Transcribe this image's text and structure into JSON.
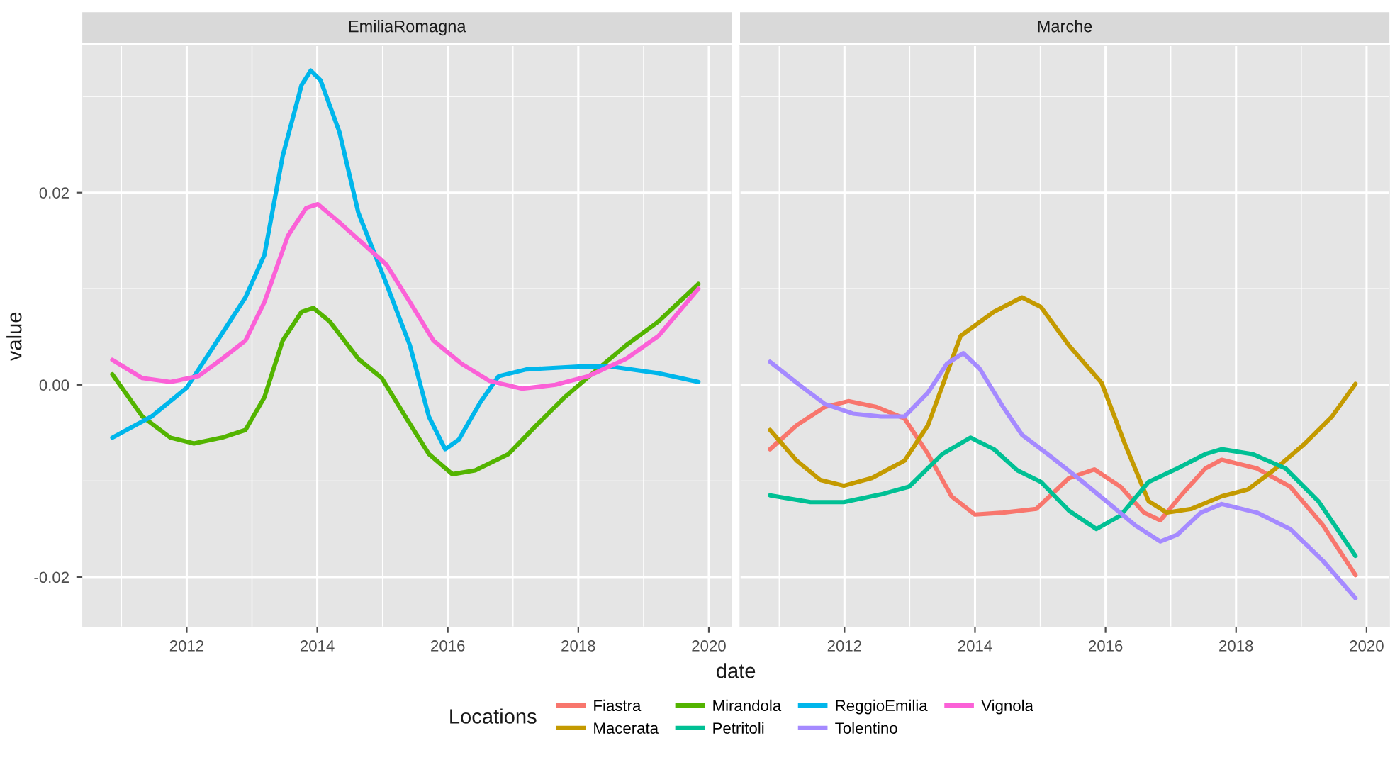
{
  "chart_data": [
    {
      "type": "line",
      "title": "EmiliaRomagna",
      "xlabel": "date",
      "ylabel": "value",
      "legend": "bottom",
      "legend_title": "Locations",
      "grid": true,
      "xlim": [
        2010.4,
        2020.35
      ],
      "xticks": [
        2012,
        2014,
        2016,
        2018,
        2020
      ],
      "ylim": [
        -0.0252,
        0.0353
      ],
      "yticks": [
        {
          "value": -0.02,
          "label": "-0.02"
        },
        {
          "value": 0,
          "label": "0.00"
        },
        {
          "value": 0.02,
          "label": "0.02"
        }
      ],
      "series": [
        {
          "name": "Mirandola",
          "color": "#53b400",
          "x": [
            2010.86,
            2011.32,
            2011.75,
            2012.11,
            2012.54,
            2012.9,
            2013.19,
            2013.47,
            2013.76,
            2013.94,
            2014.19,
            2014.63,
            2014.99,
            2015.35,
            2015.71,
            2016.07,
            2016.42,
            2016.93,
            2017.36,
            2017.79,
            2018.22,
            2018.73,
            2019.23,
            2019.84
          ],
          "values": [
            0.0011,
            -0.0033,
            -0.0055,
            -0.0061,
            -0.0055,
            -0.0047,
            -0.0013,
            0.0046,
            0.0076,
            0.008,
            0.0066,
            0.0027,
            0.0007,
            -0.0033,
            -0.0072,
            -0.0093,
            -0.0089,
            -0.0072,
            -0.0042,
            -0.0013,
            0.0012,
            0.0041,
            0.0066,
            0.0105
          ]
        },
        {
          "name": "ReggioEmilia",
          "color": "#00b6eb",
          "x": [
            2010.86,
            2011.46,
            2012.0,
            2012.47,
            2012.9,
            2013.19,
            2013.47,
            2013.76,
            2013.9,
            2014.05,
            2014.34,
            2014.63,
            2015.06,
            2015.42,
            2015.71,
            2015.96,
            2016.17,
            2016.5,
            2016.78,
            2017.2,
            2018.0,
            2018.5,
            2019.23,
            2019.84
          ],
          "values": [
            -0.0055,
            -0.0033,
            -0.0003,
            0.0046,
            0.0091,
            0.0135,
            0.0238,
            0.0312,
            0.0327,
            0.0317,
            0.0263,
            0.0179,
            0.0105,
            0.0041,
            -0.0033,
            -0.0067,
            -0.0057,
            -0.0018,
            0.0009,
            0.0016,
            0.0019,
            0.0019,
            0.0012,
            0.0003
          ]
        },
        {
          "name": "Vignola",
          "color": "#fb61d7",
          "x": [
            2010.86,
            2011.32,
            2011.75,
            2012.18,
            2012.54,
            2012.9,
            2013.19,
            2013.55,
            2013.83,
            2014.01,
            2014.34,
            2014.7,
            2015.06,
            2015.42,
            2015.78,
            2016.21,
            2016.64,
            2017.14,
            2017.65,
            2018.15,
            2018.73,
            2019.23,
            2019.84
          ],
          "values": [
            0.0026,
            0.0007,
            0.0003,
            0.0009,
            0.0027,
            0.0046,
            0.0086,
            0.0155,
            0.0184,
            0.0188,
            0.0169,
            0.0147,
            0.0125,
            0.0086,
            0.0046,
            0.0022,
            0.0004,
            -0.0004,
            0.0,
            0.0009,
            0.0027,
            0.0051,
            0.01
          ]
        }
      ]
    },
    {
      "type": "line",
      "title": "Marche",
      "legend": "bottom",
      "tick_labels": "x",
      "grid": true,
      "xlim": [
        2010.4,
        2020.35
      ],
      "xticks": [
        2012,
        2014,
        2016,
        2018,
        2020
      ],
      "ylim": [
        -0.0252,
        0.0353
      ],
      "series": [
        {
          "name": "Fiastra",
          "color": "#f8766d",
          "x": [
            2010.86,
            2011.27,
            2011.7,
            2012.06,
            2012.49,
            2012.92,
            2013.28,
            2013.64,
            2014.0,
            2014.43,
            2014.94,
            2015.44,
            2015.83,
            2016.23,
            2016.59,
            2016.84,
            2017.17,
            2017.53,
            2017.78,
            2018.32,
            2018.83,
            2019.33,
            2019.83
          ],
          "values": [
            -0.0067,
            -0.0042,
            -0.0023,
            -0.0017,
            -0.0023,
            -0.0035,
            -0.0072,
            -0.0116,
            -0.0135,
            -0.0133,
            -0.0129,
            -0.0097,
            -0.0088,
            -0.0106,
            -0.0133,
            -0.0141,
            -0.0114,
            -0.0087,
            -0.0078,
            -0.0087,
            -0.0106,
            -0.0146,
            -0.0198
          ]
        },
        {
          "name": "Macerata",
          "color": "#c49a00",
          "x": [
            2010.86,
            2011.27,
            2011.63,
            2011.99,
            2012.42,
            2012.92,
            2013.28,
            2013.78,
            2014.29,
            2014.72,
            2015.01,
            2015.44,
            2015.94,
            2016.3,
            2016.66,
            2016.94,
            2017.32,
            2017.78,
            2018.18,
            2018.61,
            2019.04,
            2019.47,
            2019.83
          ],
          "values": [
            -0.0047,
            -0.0079,
            -0.0099,
            -0.0105,
            -0.0097,
            -0.0079,
            -0.0042,
            0.0051,
            0.0076,
            0.0091,
            0.0081,
            0.0041,
            0.0002,
            -0.0062,
            -0.0121,
            -0.0133,
            -0.0129,
            -0.0116,
            -0.0109,
            -0.0087,
            -0.0062,
            -0.0033,
            0.0001
          ]
        },
        {
          "name": "Petritoli",
          "color": "#00c094",
          "x": [
            2010.86,
            2011.48,
            2011.99,
            2012.56,
            2012.99,
            2013.5,
            2013.93,
            2014.29,
            2014.65,
            2015.01,
            2015.44,
            2015.86,
            2016.23,
            2016.66,
            2017.1,
            2017.53,
            2017.78,
            2018.25,
            2018.76,
            2019.26,
            2019.83
          ],
          "values": [
            -0.0115,
            -0.0122,
            -0.0122,
            -0.0114,
            -0.0106,
            -0.0072,
            -0.0055,
            -0.0067,
            -0.0089,
            -0.0101,
            -0.0131,
            -0.015,
            -0.0136,
            -0.0101,
            -0.0087,
            -0.0072,
            -0.0067,
            -0.0072,
            -0.0087,
            -0.0121,
            -0.0178
          ]
        },
        {
          "name": "Tolentino",
          "color": "#a58aff",
          "x": [
            2010.86,
            2011.27,
            2011.7,
            2012.13,
            2012.56,
            2012.92,
            2013.28,
            2013.57,
            2013.82,
            2014.07,
            2014.43,
            2014.72,
            2015.15,
            2015.58,
            2016.01,
            2016.45,
            2016.84,
            2017.1,
            2017.46,
            2017.78,
            2018.32,
            2018.83,
            2019.33,
            2019.83
          ],
          "values": [
            0.0024,
            0.0002,
            -0.002,
            -0.003,
            -0.0033,
            -0.0033,
            -0.0008,
            0.0022,
            0.0033,
            0.0017,
            -0.0023,
            -0.0052,
            -0.0074,
            -0.0097,
            -0.0121,
            -0.0146,
            -0.0163,
            -0.0156,
            -0.0133,
            -0.0124,
            -0.0133,
            -0.015,
            -0.0183,
            -0.0222
          ]
        }
      ]
    }
  ]
}
